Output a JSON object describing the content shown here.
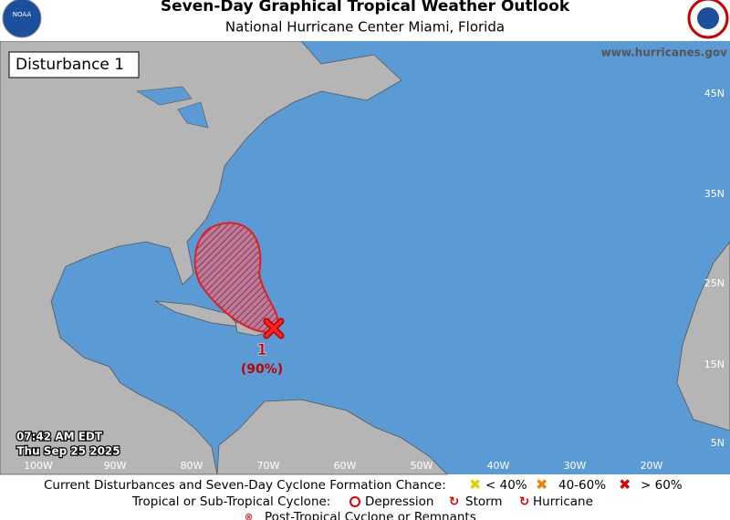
{
  "header": {
    "title": "Seven-Day Graphical Tropical Weather Outlook",
    "subtitle": "National Hurricane Center  Miami, Florida",
    "website": "www.hurricanes.gov",
    "logo_left": "NOAA"
  },
  "map": {
    "panel_label": "Disturbance 1",
    "lat_labels": [
      "45N",
      "35N",
      "25N",
      "15N",
      "5N"
    ],
    "lon_labels": [
      "100W",
      "90W",
      "80W",
      "70W",
      "60W",
      "50W",
      "40W",
      "30W",
      "20W"
    ],
    "time": "07:42 AM EDT",
    "date": "Thu Sep 25 2025",
    "disturbances": [
      {
        "id": "1",
        "chance": "(90%)"
      }
    ]
  },
  "legend": {
    "line1": "Current Disturbances and Seven-Day Cyclone Formation Chance:",
    "chances": [
      "< 40%",
      "40-60%",
      "> 60%"
    ],
    "line2": "Tropical or Sub-Tropical Cyclone:",
    "cyclones": [
      "Depression",
      "Storm",
      "Hurricane"
    ],
    "line3": "Post-Tropical Cyclone or Remnants"
  }
}
